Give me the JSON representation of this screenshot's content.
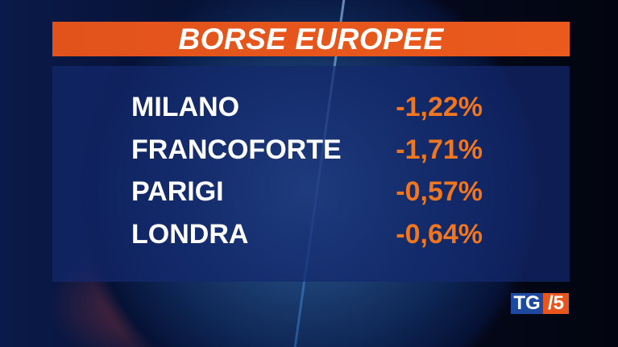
{
  "title": "BORSE EUROPEE",
  "markets": [
    {
      "name": "MILANO",
      "change": "-1,22%"
    },
    {
      "name": "FRANCOFORTE",
      "change": "-1,71%"
    },
    {
      "name": "PARIGI",
      "change": "-0,57%"
    },
    {
      "name": "LONDRA",
      "change": "-0,64%"
    }
  ],
  "logo": {
    "tg": "TG",
    "five": "/5"
  },
  "colors": {
    "accent": "#e8561e",
    "value": "#f0761f",
    "panel": "#14286e"
  }
}
